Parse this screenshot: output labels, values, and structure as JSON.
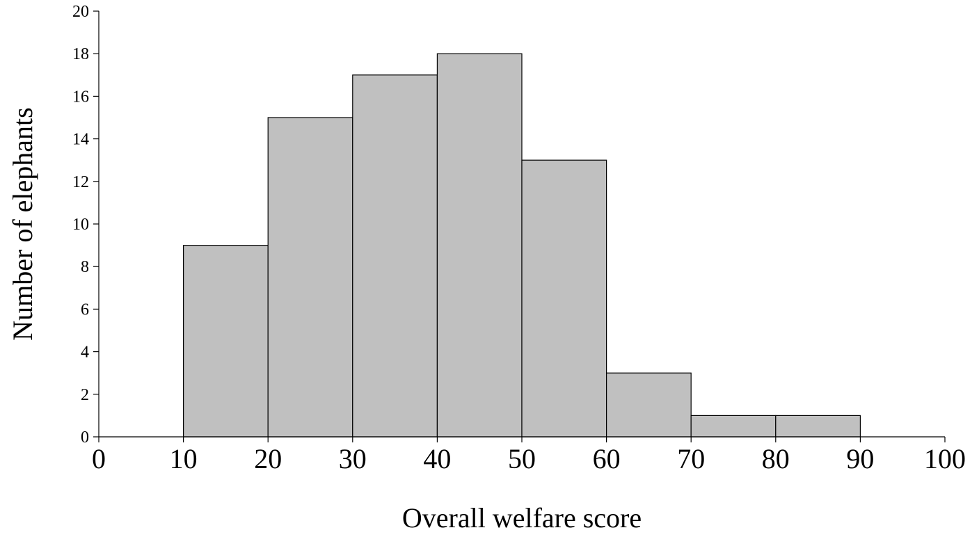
{
  "chart_data": {
    "type": "bar",
    "title": "",
    "xlabel": "Overall welfare score",
    "ylabel": "Number of elephants",
    "xlim": [
      0,
      100
    ],
    "ylim": [
      0,
      20
    ],
    "x_ticks": [
      0,
      10,
      20,
      30,
      40,
      50,
      60,
      70,
      80,
      90,
      100
    ],
    "y_ticks": [
      0,
      2,
      4,
      6,
      8,
      10,
      12,
      14,
      16,
      18,
      20
    ],
    "bins": [
      {
        "start": 10,
        "end": 20,
        "value": 9
      },
      {
        "start": 20,
        "end": 30,
        "value": 15
      },
      {
        "start": 30,
        "end": 40,
        "value": 17
      },
      {
        "start": 40,
        "end": 50,
        "value": 18
      },
      {
        "start": 50,
        "end": 60,
        "value": 13
      },
      {
        "start": 60,
        "end": 70,
        "value": 3
      },
      {
        "start": 70,
        "end": 80,
        "value": 1
      },
      {
        "start": 80,
        "end": 90,
        "value": 1
      }
    ],
    "bar_color": "#c0c0c0",
    "bar_edge_color": "#000000",
    "grid": false,
    "legend": "none"
  }
}
